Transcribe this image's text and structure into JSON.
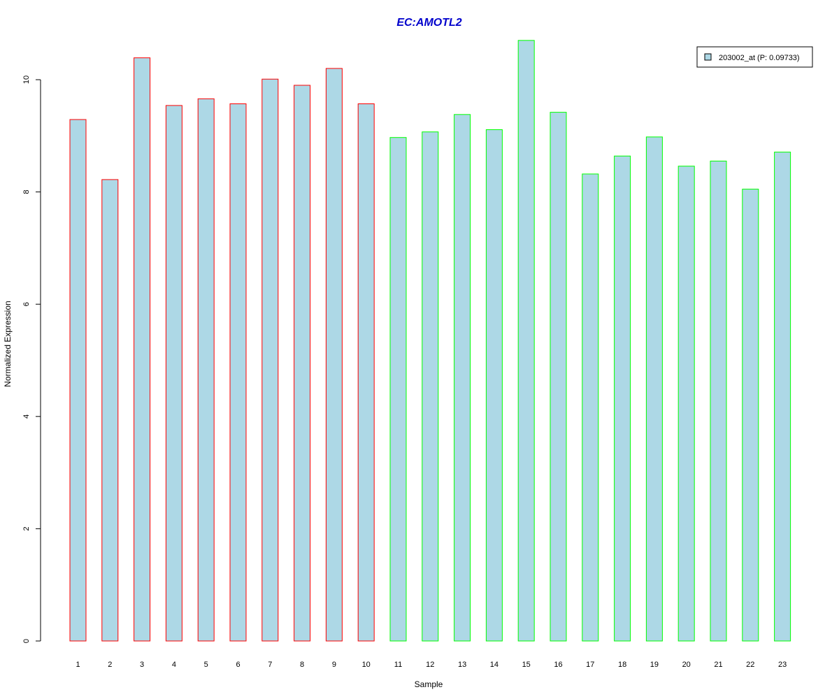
{
  "chart_data": {
    "type": "bar",
    "title": "EC:AMOTL2",
    "xlabel": "Sample",
    "ylabel": "Normalized Expression",
    "ylim": [
      0,
      10.7
    ],
    "y_ticks": [
      0,
      2,
      4,
      6,
      8,
      10
    ],
    "categories": [
      "1",
      "2",
      "3",
      "4",
      "5",
      "6",
      "7",
      "8",
      "9",
      "10",
      "11",
      "12",
      "13",
      "14",
      "15",
      "16",
      "17",
      "18",
      "19",
      "20",
      "21",
      "22",
      "23"
    ],
    "series": [
      {
        "name": "203002_at (P: 0.09733)",
        "values": [
          9.29,
          8.22,
          10.39,
          9.54,
          9.66,
          9.57,
          10.01,
          9.9,
          10.2,
          9.57,
          8.97,
          9.07,
          9.38,
          9.11,
          10.7,
          9.42,
          8.32,
          8.64,
          8.98,
          8.46,
          8.55,
          8.05,
          8.71
        ]
      }
    ],
    "group_outline": [
      "red",
      "red",
      "red",
      "red",
      "red",
      "red",
      "red",
      "red",
      "red",
      "red",
      "green",
      "green",
      "green",
      "green",
      "green",
      "green",
      "green",
      "green",
      "green",
      "green",
      "green",
      "green",
      "green"
    ],
    "legend_position": "top-right",
    "grid": false
  },
  "colors": {
    "title": "#0000CC",
    "bar_fill": "#ADD8E6",
    "red": "#FF0000",
    "green": "#00FF00",
    "axis": "#000000"
  }
}
